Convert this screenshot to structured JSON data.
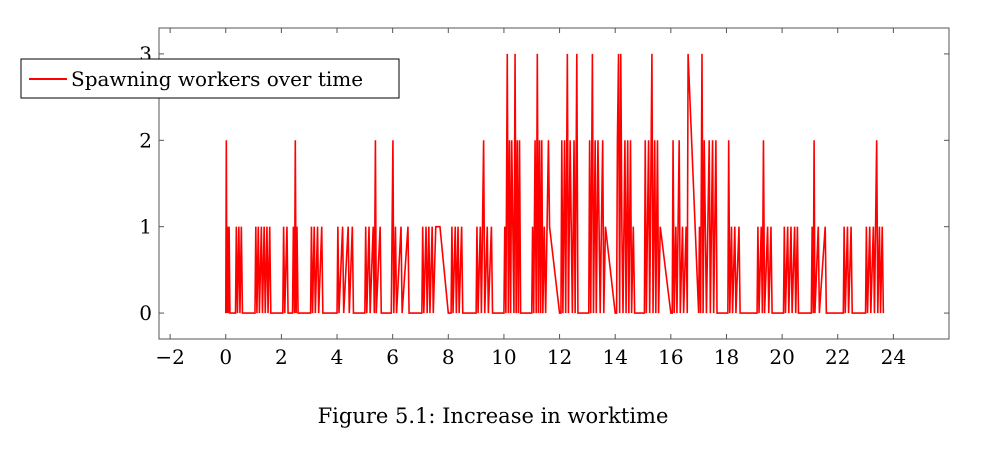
{
  "chart_data": {
    "type": "line",
    "title": "",
    "xlabel": "",
    "ylabel": "",
    "xlim": [
      -2.4,
      26
    ],
    "ylim": [
      -0.3,
      3.3
    ],
    "x_ticks": [
      -2,
      0,
      2,
      4,
      6,
      8,
      10,
      12,
      14,
      16,
      18,
      20,
      22,
      24
    ],
    "y_ticks": [
      0,
      1,
      2,
      3
    ],
    "grid": false,
    "legend_position": "top-left",
    "series": [
      {
        "name": "Spawning workers over time",
        "color": "#ff0000",
        "points": [
          [
            0.0,
            0
          ],
          [
            0.02,
            2
          ],
          [
            0.04,
            0
          ],
          [
            0.06,
            1
          ],
          [
            0.09,
            0
          ],
          [
            0.12,
            1
          ],
          [
            0.15,
            0
          ],
          [
            0.35,
            0
          ],
          [
            0.38,
            1
          ],
          [
            0.42,
            0
          ],
          [
            0.47,
            1
          ],
          [
            0.51,
            0
          ],
          [
            0.56,
            1
          ],
          [
            0.6,
            0
          ],
          [
            1.05,
            0
          ],
          [
            1.08,
            1
          ],
          [
            1.12,
            0
          ],
          [
            1.17,
            1
          ],
          [
            1.21,
            0
          ],
          [
            1.28,
            1
          ],
          [
            1.32,
            0
          ],
          [
            1.38,
            1
          ],
          [
            1.42,
            0
          ],
          [
            1.48,
            1
          ],
          [
            1.52,
            0
          ],
          [
            1.58,
            1
          ],
          [
            1.62,
            0
          ],
          [
            2.05,
            0
          ],
          [
            2.08,
            1
          ],
          [
            2.12,
            0
          ],
          [
            2.2,
            1
          ],
          [
            2.24,
            0
          ],
          [
            2.4,
            0
          ],
          [
            2.43,
            1
          ],
          [
            2.47,
            0
          ],
          [
            2.5,
            2
          ],
          [
            2.53,
            0
          ],
          [
            2.56,
            1
          ],
          [
            2.6,
            0
          ],
          [
            3.05,
            0
          ],
          [
            3.08,
            1
          ],
          [
            3.12,
            0
          ],
          [
            3.18,
            1
          ],
          [
            3.22,
            0
          ],
          [
            3.3,
            1
          ],
          [
            3.34,
            0
          ],
          [
            3.45,
            1
          ],
          [
            3.49,
            0
          ],
          [
            4.0,
            0
          ],
          [
            4.03,
            1
          ],
          [
            4.07,
            0
          ],
          [
            4.2,
            1
          ],
          [
            4.24,
            0
          ],
          [
            4.4,
            1
          ],
          [
            4.44,
            0
          ],
          [
            4.55,
            1
          ],
          [
            4.59,
            0
          ],
          [
            5.0,
            0
          ],
          [
            5.03,
            1
          ],
          [
            5.07,
            0
          ],
          [
            5.15,
            1
          ],
          [
            5.19,
            0
          ],
          [
            5.3,
            1
          ],
          [
            5.34,
            0
          ],
          [
            5.38,
            2
          ],
          [
            5.41,
            0
          ],
          [
            5.55,
            1
          ],
          [
            5.59,
            0
          ],
          [
            5.95,
            0
          ],
          [
            5.98,
            1
          ],
          [
            6.01,
            2
          ],
          [
            6.04,
            0
          ],
          [
            6.1,
            1
          ],
          [
            6.14,
            0
          ],
          [
            6.3,
            1
          ],
          [
            6.34,
            0
          ],
          [
            6.55,
            1
          ],
          [
            6.59,
            0
          ],
          [
            7.05,
            0
          ],
          [
            7.08,
            1
          ],
          [
            7.12,
            0
          ],
          [
            7.2,
            1
          ],
          [
            7.24,
            0
          ],
          [
            7.3,
            1
          ],
          [
            7.34,
            0
          ],
          [
            7.42,
            1
          ],
          [
            7.46,
            0
          ],
          [
            7.55,
            1
          ],
          [
            7.6,
            1
          ],
          [
            7.7,
            1
          ],
          [
            8.0,
            0
          ],
          [
            8.1,
            0
          ],
          [
            8.13,
            1
          ],
          [
            8.17,
            0
          ],
          [
            8.25,
            1
          ],
          [
            8.29,
            0
          ],
          [
            8.35,
            1
          ],
          [
            8.39,
            0
          ],
          [
            8.48,
            1
          ],
          [
            8.52,
            0
          ],
          [
            9.0,
            0
          ],
          [
            9.03,
            1
          ],
          [
            9.07,
            0
          ],
          [
            9.15,
            1
          ],
          [
            9.19,
            0
          ],
          [
            9.27,
            2
          ],
          [
            9.31,
            0
          ],
          [
            9.4,
            1
          ],
          [
            9.44,
            0
          ],
          [
            9.55,
            1
          ],
          [
            9.59,
            0
          ],
          [
            10.0,
            0
          ],
          [
            10.03,
            1
          ],
          [
            10.07,
            0
          ],
          [
            10.12,
            3
          ],
          [
            10.16,
            0
          ],
          [
            10.2,
            2
          ],
          [
            10.24,
            0
          ],
          [
            10.28,
            2
          ],
          [
            10.32,
            1
          ],
          [
            10.36,
            0
          ],
          [
            10.4,
            3
          ],
          [
            10.44,
            0
          ],
          [
            10.48,
            2
          ],
          [
            10.52,
            0
          ],
          [
            10.56,
            2
          ],
          [
            10.6,
            0
          ],
          [
            11.0,
            0
          ],
          [
            11.03,
            1
          ],
          [
            11.07,
            0
          ],
          [
            11.12,
            2
          ],
          [
            11.16,
            0
          ],
          [
            11.2,
            3
          ],
          [
            11.24,
            0
          ],
          [
            11.28,
            2
          ],
          [
            11.32,
            0
          ],
          [
            11.36,
            2
          ],
          [
            11.4,
            0
          ],
          [
            11.45,
            1
          ],
          [
            11.5,
            0
          ],
          [
            11.6,
            2
          ],
          [
            11.64,
            1
          ],
          [
            12.0,
            0
          ],
          [
            12.05,
            0
          ],
          [
            12.08,
            2
          ],
          [
            12.12,
            0
          ],
          [
            12.18,
            2
          ],
          [
            12.22,
            0
          ],
          [
            12.28,
            3
          ],
          [
            12.32,
            0
          ],
          [
            12.38,
            2
          ],
          [
            12.42,
            1
          ],
          [
            12.46,
            0
          ],
          [
            12.52,
            2
          ],
          [
            12.56,
            0
          ],
          [
            12.62,
            3
          ],
          [
            12.66,
            0
          ],
          [
            13.05,
            0
          ],
          [
            13.08,
            2
          ],
          [
            13.12,
            0
          ],
          [
            13.18,
            3
          ],
          [
            13.22,
            0
          ],
          [
            13.28,
            2
          ],
          [
            13.32,
            0
          ],
          [
            13.38,
            2
          ],
          [
            13.42,
            1
          ],
          [
            13.46,
            0
          ],
          [
            13.55,
            2
          ],
          [
            13.59,
            0
          ],
          [
            13.65,
            1
          ],
          [
            14.0,
            0
          ],
          [
            14.05,
            0
          ],
          [
            14.08,
            2
          ],
          [
            14.12,
            3
          ],
          [
            14.16,
            0
          ],
          [
            14.2,
            3
          ],
          [
            14.24,
            1
          ],
          [
            14.28,
            0
          ],
          [
            14.35,
            2
          ],
          [
            14.39,
            0
          ],
          [
            14.45,
            2
          ],
          [
            14.49,
            0
          ],
          [
            14.55,
            2
          ],
          [
            14.59,
            0
          ],
          [
            14.65,
            1
          ],
          [
            14.7,
            0
          ],
          [
            15.05,
            0
          ],
          [
            15.08,
            2
          ],
          [
            15.12,
            0
          ],
          [
            15.2,
            2
          ],
          [
            15.24,
            0
          ],
          [
            15.32,
            3
          ],
          [
            15.36,
            0
          ],
          [
            15.42,
            2
          ],
          [
            15.46,
            0
          ],
          [
            15.52,
            2
          ],
          [
            15.56,
            0
          ],
          [
            15.62,
            1
          ],
          [
            16.0,
            0
          ],
          [
            16.05,
            0
          ],
          [
            16.08,
            2
          ],
          [
            16.12,
            0
          ],
          [
            16.18,
            1
          ],
          [
            16.22,
            0
          ],
          [
            16.3,
            2
          ],
          [
            16.34,
            0
          ],
          [
            16.42,
            1
          ],
          [
            16.46,
            0
          ],
          [
            16.55,
            1
          ],
          [
            16.59,
            0
          ],
          [
            16.62,
            3
          ],
          [
            17.0,
            0
          ],
          [
            17.03,
            1
          ],
          [
            17.07,
            0
          ],
          [
            17.12,
            3
          ],
          [
            17.16,
            0
          ],
          [
            17.2,
            2
          ],
          [
            17.24,
            1
          ],
          [
            17.28,
            0
          ],
          [
            17.38,
            2
          ],
          [
            17.42,
            0
          ],
          [
            17.5,
            2
          ],
          [
            17.54,
            0
          ],
          [
            17.62,
            2
          ],
          [
            17.66,
            0
          ],
          [
            18.05,
            0
          ],
          [
            18.08,
            2
          ],
          [
            18.12,
            0
          ],
          [
            18.18,
            1
          ],
          [
            18.22,
            0
          ],
          [
            18.3,
            1
          ],
          [
            18.34,
            0
          ],
          [
            18.45,
            1
          ],
          [
            18.49,
            0
          ],
          [
            19.1,
            0
          ],
          [
            19.13,
            1
          ],
          [
            19.17,
            0
          ],
          [
            19.25,
            1
          ],
          [
            19.29,
            0
          ],
          [
            19.33,
            2
          ],
          [
            19.37,
            0
          ],
          [
            19.48,
            1
          ],
          [
            19.52,
            0
          ],
          [
            19.6,
            1
          ],
          [
            19.64,
            0
          ],
          [
            20.05,
            0
          ],
          [
            20.08,
            1
          ],
          [
            20.12,
            0
          ],
          [
            20.2,
            1
          ],
          [
            20.24,
            0
          ],
          [
            20.32,
            1
          ],
          [
            20.36,
            0
          ],
          [
            20.45,
            1
          ],
          [
            20.49,
            0
          ],
          [
            20.55,
            1
          ],
          [
            20.59,
            0
          ],
          [
            21.05,
            0
          ],
          [
            21.08,
            1
          ],
          [
            21.12,
            0
          ],
          [
            21.15,
            2
          ],
          [
            21.18,
            0
          ],
          [
            21.3,
            1
          ],
          [
            21.34,
            0
          ],
          [
            21.55,
            1
          ],
          [
            21.59,
            0
          ],
          [
            22.2,
            0
          ],
          [
            22.23,
            1
          ],
          [
            22.27,
            0
          ],
          [
            22.35,
            1
          ],
          [
            22.39,
            0
          ],
          [
            22.48,
            1
          ],
          [
            22.52,
            0
          ],
          [
            23.0,
            0
          ],
          [
            23.03,
            1
          ],
          [
            23.07,
            0
          ],
          [
            23.15,
            1
          ],
          [
            23.19,
            0
          ],
          [
            23.28,
            1
          ],
          [
            23.32,
            0
          ],
          [
            23.4,
            2
          ],
          [
            23.44,
            0
          ],
          [
            23.5,
            1
          ],
          [
            23.54,
            0
          ],
          [
            23.6,
            1
          ],
          [
            23.64,
            0
          ]
        ]
      }
    ]
  },
  "caption": "Figure 5.1: Increase in worktime"
}
